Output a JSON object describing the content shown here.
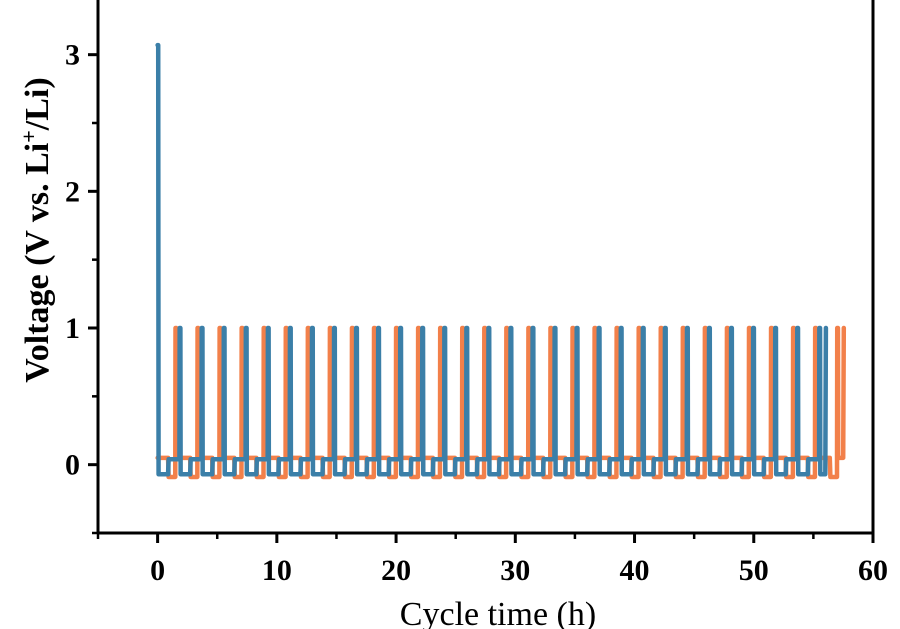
{
  "chart_data": {
    "type": "line",
    "title": "",
    "xlabel": "Cycle time (h)",
    "ylabel": {
      "before": "Voltage (V vs. Li",
      "sup": "+",
      "after": "/Li)"
    },
    "xlim": [
      -5,
      60
    ],
    "ylim": [
      -0.5,
      3.4
    ],
    "xticks": [
      "0",
      "10",
      "20",
      "30",
      "40",
      "50",
      "60"
    ],
    "yticks": [
      "0",
      "1",
      "2",
      "3"
    ],
    "series": [
      {
        "name": "orange",
        "color": "#f2804a",
        "pattern": {
          "start": 0,
          "end": 57.5,
          "period": 1.85,
          "spike_offset": 1.5,
          "spike_width": 0.06,
          "spike_value": 1.0,
          "base_values": [
            0.05,
            -0.09
          ],
          "end_value": 1.0
        }
      },
      {
        "name": "blue",
        "color": "#3b7fa8",
        "pattern": {
          "start": 0,
          "end": 56.0,
          "period": 1.85,
          "spike_offset": 1.85,
          "spike_width": 0.06,
          "spike_value": 1.0,
          "base_values": [
            -0.07,
            0.04
          ],
          "initial_value": 3.07,
          "end_value": 1.0
        }
      }
    ]
  }
}
